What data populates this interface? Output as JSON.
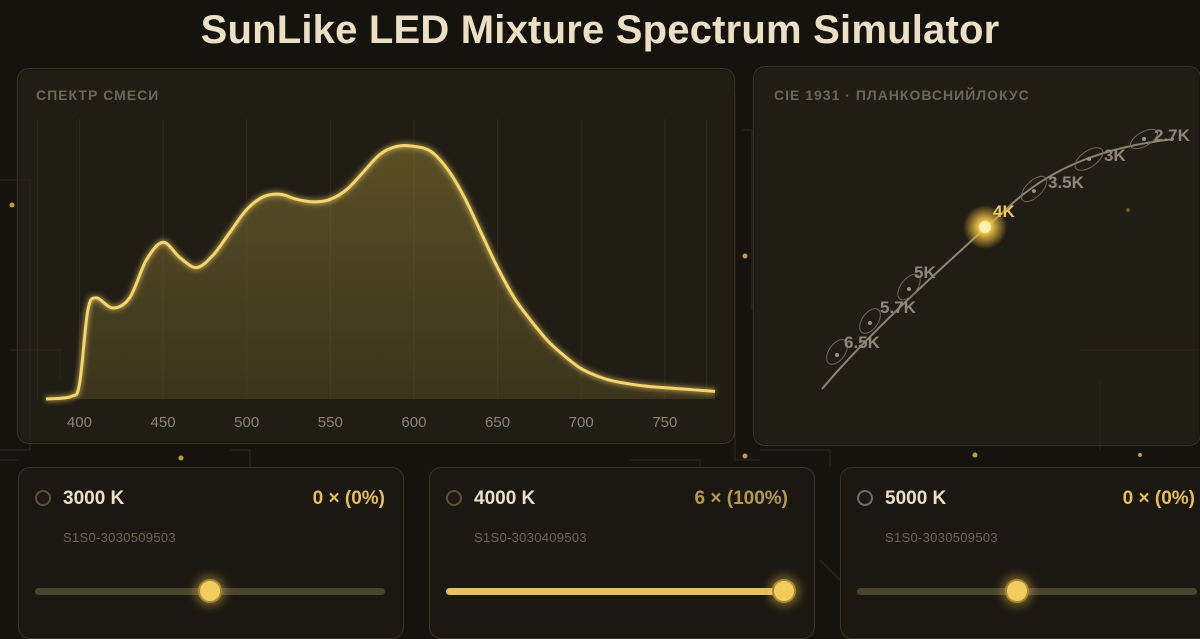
{
  "app": {
    "title": "SunLike LED Mixture Spectrum Simulator"
  },
  "spectrum": {
    "panel_title": "СПЕКТР СМЕСИ",
    "x_ticks": [
      "400",
      "450",
      "500",
      "550",
      "600",
      "650",
      "700",
      "750"
    ]
  },
  "cie": {
    "panel_title": "CIE 1931 · ПЛАНКОВСНИЙЛОКУС",
    "labels": [
      "2.7K",
      "3K",
      "3.5K",
      "4K",
      "5K",
      "5.7K",
      "6.5K"
    ],
    "selected": "4K"
  },
  "channels": [
    {
      "name": "3000 K",
      "amount": "0 × (0%)",
      "part": "S1S0-3030509503",
      "level": 0.5
    },
    {
      "name": "4000 K",
      "amount": "6 × (100%)",
      "part": "S1S0-3030409503",
      "level": 1.0
    },
    {
      "name": "5000 K",
      "amount": "0 × (0%)",
      "part": "S1S0-3030509503",
      "level": 0.5
    }
  ],
  "chart_data": {
    "type": "area",
    "title": "СПЕКТР СМЕСИ",
    "xlabel": "",
    "ylabel": "",
    "x": [
      380,
      395,
      400,
      405,
      410,
      420,
      430,
      440,
      450,
      460,
      470,
      480,
      490,
      500,
      510,
      520,
      530,
      540,
      550,
      560,
      570,
      580,
      590,
      600,
      610,
      620,
      630,
      640,
      650,
      660,
      670,
      680,
      690,
      700,
      710,
      720,
      740,
      760,
      780
    ],
    "series": [
      {
        "values": [
          0,
          0.01,
          0.06,
          0.35,
          0.4,
          0.36,
          0.4,
          0.55,
          0.62,
          0.56,
          0.52,
          0.57,
          0.66,
          0.75,
          0.8,
          0.81,
          0.79,
          0.78,
          0.79,
          0.83,
          0.9,
          0.97,
          1.0,
          1.0,
          0.98,
          0.91,
          0.8,
          0.66,
          0.52,
          0.4,
          0.31,
          0.23,
          0.17,
          0.12,
          0.09,
          0.07,
          0.05,
          0.04,
          0.03
        ]
      }
    ],
    "xlim": [
      380,
      780
    ],
    "ylim": [
      0,
      1.1
    ],
    "grid": true
  },
  "colors": {
    "accent": "#f2cd5d",
    "panel_border": "#3a3526",
    "background": "#15130d"
  }
}
